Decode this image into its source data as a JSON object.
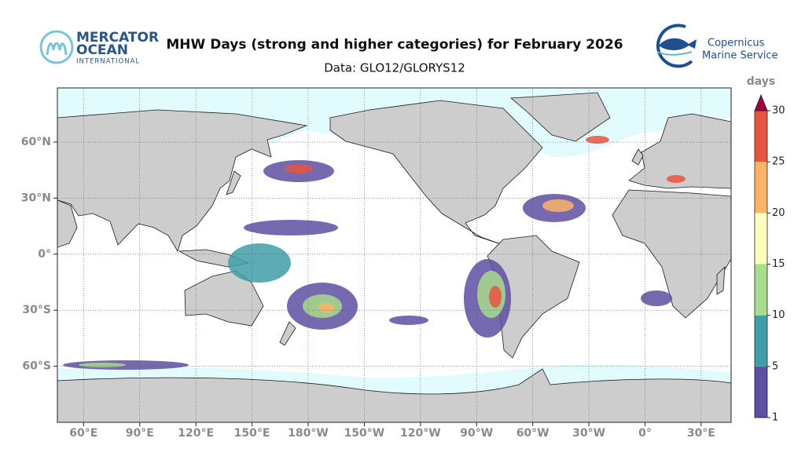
{
  "header": {
    "title": "MHW Days (strong and higher categories) for February 2026",
    "subtitle": "Data: GLO12/GLORYS12",
    "logo_left": [
      "MERCATOR",
      "OCEAN",
      "INTERNATIONAL"
    ],
    "logo_right": [
      "Copernicus",
      "Marine Service"
    ]
  },
  "map": {
    "xlim": [
      46,
      406
    ],
    "ylim": [
      -90,
      89
    ],
    "grid": true,
    "xticks": [
      {
        "value": 60,
        "label": "60°E"
      },
      {
        "value": 90,
        "label": "90°E"
      },
      {
        "value": 120,
        "label": "120°E"
      },
      {
        "value": 150,
        "label": "150°E"
      },
      {
        "value": 180,
        "label": "180°W"
      },
      {
        "value": 210,
        "label": "150°W"
      },
      {
        "value": 240,
        "label": "120°W"
      },
      {
        "value": 270,
        "label": "90°W"
      },
      {
        "value": 300,
        "label": "60°W"
      },
      {
        "value": 330,
        "label": "30°W"
      },
      {
        "value": 360,
        "label": "0°"
      },
      {
        "value": 390,
        "label": "30°E"
      }
    ],
    "yticks": [
      {
        "value": 60,
        "label": "60°N"
      },
      {
        "value": 30,
        "label": "30°N"
      },
      {
        "value": 0,
        "label": "0°"
      },
      {
        "value": -30,
        "label": "30°S"
      },
      {
        "value": -60,
        "label": "60°S"
      }
    ],
    "colorbar": {
      "title": "days",
      "ticks": [
        1,
        5,
        10,
        15,
        20,
        25,
        30
      ],
      "colors": [
        "#5e4fa2",
        "#3f9ea8",
        "#a9dc8e",
        "#fefebe",
        "#fdb466",
        "#e8553f"
      ],
      "extend_color": "#9e0142"
    }
  }
}
